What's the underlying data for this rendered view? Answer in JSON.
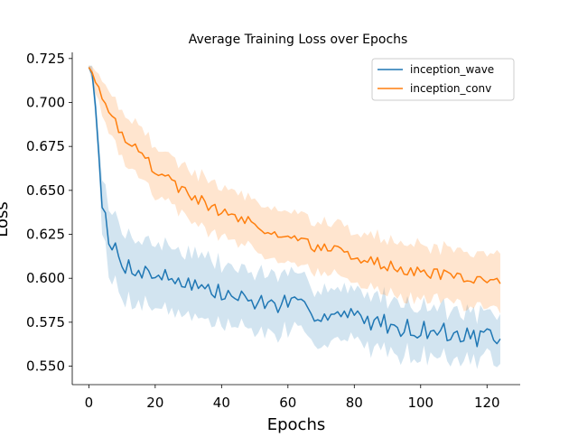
{
  "chart_data": {
    "type": "line",
    "title": "Average Training Loss over Epochs",
    "xlabel": "Epochs",
    "ylabel": "Loss",
    "xlim": [
      -5,
      130
    ],
    "ylim": [
      0.5395,
      0.7285
    ],
    "xticks": [
      0,
      20,
      40,
      60,
      80,
      100,
      120
    ],
    "yticks": [
      0.55,
      0.575,
      0.6,
      0.625,
      0.65,
      0.675,
      0.7,
      0.725
    ],
    "grid": false,
    "legend_position": "top-right",
    "series": [
      {
        "name": "inception_wave",
        "color": "#1f77b4",
        "keypoints": [
          [
            0,
            0.72
          ],
          [
            1,
            0.716
          ],
          [
            2,
            0.7
          ],
          [
            3,
            0.672
          ],
          [
            4,
            0.645
          ],
          [
            5,
            0.632
          ],
          [
            6,
            0.62
          ],
          [
            7,
            0.615
          ],
          [
            8,
            0.617
          ],
          [
            10,
            0.608
          ],
          [
            15,
            0.605
          ],
          [
            20,
            0.602
          ],
          [
            25,
            0.6
          ],
          [
            30,
            0.598
          ],
          [
            35,
            0.594
          ],
          [
            40,
            0.591
          ],
          [
            45,
            0.589
          ],
          [
            50,
            0.587
          ],
          [
            55,
            0.585
          ],
          [
            60,
            0.586
          ],
          [
            65,
            0.582
          ],
          [
            70,
            0.58
          ],
          [
            75,
            0.579
          ],
          [
            80,
            0.578
          ],
          [
            85,
            0.576
          ],
          [
            90,
            0.574
          ],
          [
            95,
            0.572
          ],
          [
            100,
            0.571
          ],
          [
            105,
            0.57
          ],
          [
            110,
            0.568
          ],
          [
            115,
            0.567
          ],
          [
            120,
            0.566
          ],
          [
            124,
            0.563
          ]
        ],
        "noise": 0.0055,
        "band_keypoints": [
          [
            0,
            0.001
          ],
          [
            3,
            0.01
          ],
          [
            6,
            0.018
          ],
          [
            124,
            0.012
          ]
        ],
        "band_noise": 0.004,
        "seed": 7
      },
      {
        "name": "inception_conv",
        "color": "#ff7f0e",
        "keypoints": [
          [
            0,
            0.72
          ],
          [
            2,
            0.713
          ],
          [
            5,
            0.7
          ],
          [
            8,
            0.69
          ],
          [
            10,
            0.682
          ],
          [
            15,
            0.672
          ],
          [
            20,
            0.662
          ],
          [
            25,
            0.654
          ],
          [
            30,
            0.648
          ],
          [
            35,
            0.643
          ],
          [
            40,
            0.638
          ],
          [
            45,
            0.634
          ],
          [
            50,
            0.63
          ],
          [
            55,
            0.627
          ],
          [
            60,
            0.623
          ],
          [
            65,
            0.62
          ],
          [
            70,
            0.617
          ],
          [
            75,
            0.615
          ],
          [
            80,
            0.612
          ],
          [
            85,
            0.61
          ],
          [
            90,
            0.607
          ],
          [
            95,
            0.605
          ],
          [
            100,
            0.603
          ],
          [
            105,
            0.602
          ],
          [
            110,
            0.601
          ],
          [
            115,
            0.6
          ],
          [
            120,
            0.598
          ],
          [
            124,
            0.596
          ]
        ],
        "noise": 0.0035,
        "band_keypoints": [
          [
            0,
            0.001
          ],
          [
            3,
            0.008
          ],
          [
            10,
            0.013
          ],
          [
            124,
            0.015
          ]
        ],
        "band_noise": 0.003,
        "seed": 19
      }
    ]
  }
}
